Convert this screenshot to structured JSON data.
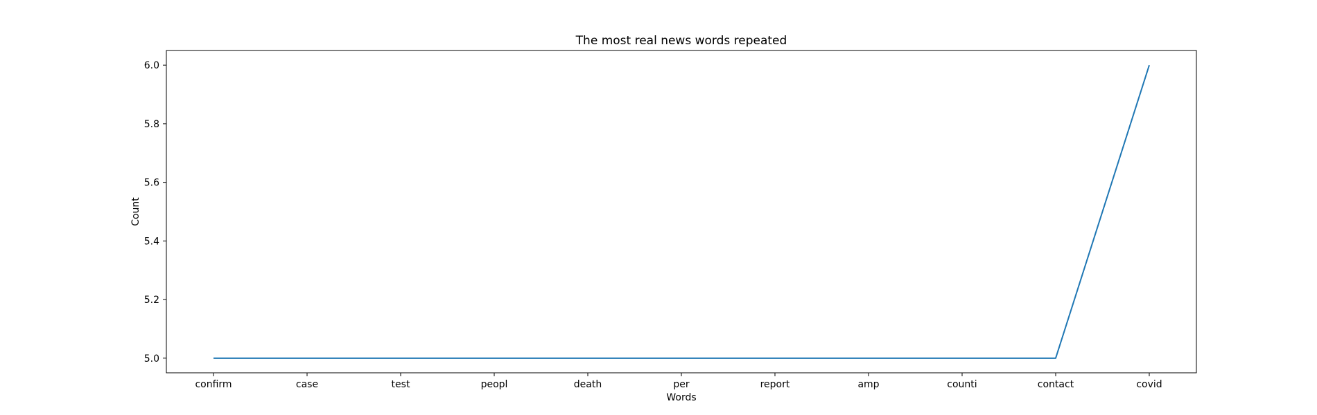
{
  "chart_data": {
    "type": "line",
    "title": "The most real news words repeated",
    "xlabel": "Words",
    "ylabel": "Count",
    "categories": [
      "confirm",
      "case",
      "test",
      "peopl",
      "death",
      "per",
      "report",
      "amp",
      "counti",
      "contact",
      "covid"
    ],
    "series": [
      {
        "values": [
          5,
          5,
          5,
          5,
          5,
          5,
          5,
          5,
          5,
          5,
          6
        ],
        "color": "#1f77b4"
      }
    ],
    "ylim": [
      4.95,
      6.05
    ],
    "yticks": [
      "5.0",
      "5.2",
      "5.4",
      "5.6",
      "5.8",
      "6.0"
    ],
    "grid": false,
    "legend": "none"
  }
}
